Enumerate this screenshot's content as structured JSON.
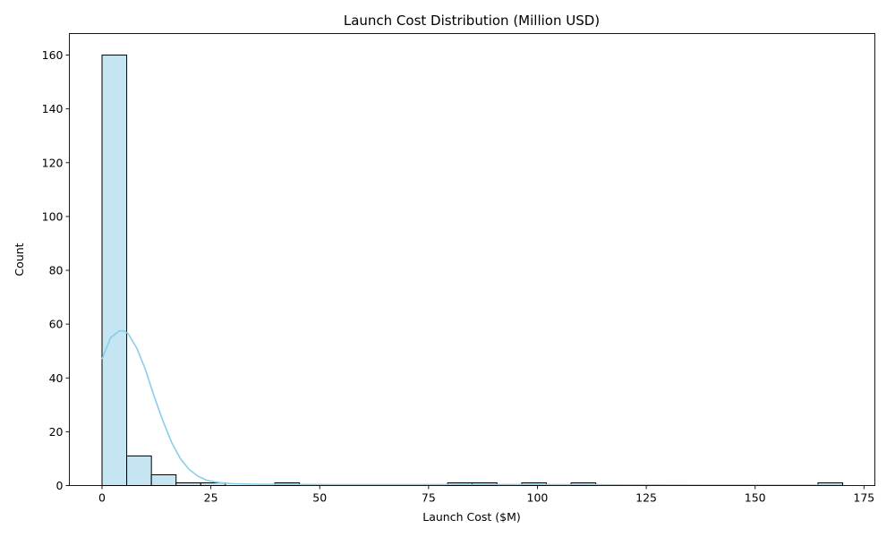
{
  "chart_data": {
    "type": "bar",
    "subtype": "histogram-with-kde",
    "title": "Launch Cost Distribution (Million USD)",
    "xlabel": "Launch Cost ($M)",
    "ylabel": "Count",
    "xlim": [
      -7.5,
      177.5
    ],
    "ylim": [
      0,
      168
    ],
    "x_ticks": [
      0,
      25,
      50,
      75,
      100,
      125,
      150,
      175
    ],
    "y_ticks": [
      0,
      20,
      40,
      60,
      80,
      100,
      120,
      140,
      160
    ],
    "bin_start": 0,
    "bin_width": 5.67,
    "counts": [
      160,
      11,
      4,
      1,
      1,
      0,
      0,
      1,
      0,
      0,
      0,
      0,
      0,
      0,
      1,
      1,
      0,
      1,
      0,
      1,
      0,
      0,
      0,
      0,
      0,
      0,
      0,
      0,
      0,
      1
    ],
    "kde": {
      "x": [
        0,
        2,
        4,
        5,
        6,
        8,
        10,
        12,
        14,
        16,
        18,
        20,
        22,
        24,
        26,
        28,
        30,
        35,
        40,
        45,
        50,
        60,
        70,
        80,
        90,
        100,
        110,
        120,
        130,
        140,
        150,
        160,
        170
      ],
      "y": [
        47,
        55,
        57.5,
        57.5,
        56.5,
        51,
        43,
        33,
        24,
        16,
        10,
        6,
        3.5,
        2,
        1.3,
        0.9,
        0.7,
        0.5,
        0.45,
        0.4,
        0.35,
        0.3,
        0.3,
        0.35,
        0.35,
        0.35,
        0.3,
        0.25,
        0.2,
        0.15,
        0.15,
        0.15,
        0.15
      ]
    },
    "bar_fill": "#c6e5f3",
    "bar_stroke": "#000000",
    "kde_color": "#87ceeb",
    "grid": false,
    "legend": "none"
  }
}
